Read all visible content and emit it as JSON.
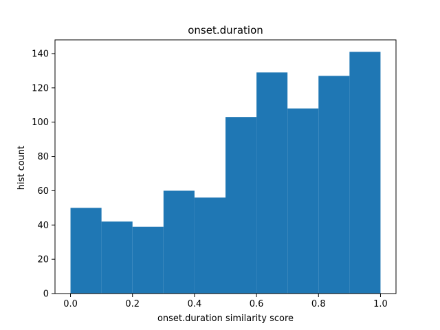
{
  "chart_data": {
    "type": "bar",
    "title": "onset.duration",
    "xlabel": "onset.duration similarity score",
    "ylabel": "hist count",
    "bin_edges": [
      0.0,
      0.1,
      0.2,
      0.3,
      0.4,
      0.5,
      0.6,
      0.7,
      0.8,
      0.9,
      1.0
    ],
    "values": [
      50,
      42,
      39,
      60,
      56,
      103,
      129,
      108,
      127,
      141
    ],
    "xlim": [
      -0.05,
      1.05
    ],
    "ylim": [
      0,
      148
    ],
    "xticks": [
      0.0,
      0.2,
      0.4,
      0.6,
      0.8,
      1.0
    ],
    "xtick_labels": [
      "0.0",
      "0.2",
      "0.4",
      "0.6",
      "0.8",
      "1.0"
    ],
    "yticks": [
      0,
      20,
      40,
      60,
      80,
      100,
      120,
      140
    ],
    "ytick_labels": [
      "0",
      "20",
      "40",
      "60",
      "80",
      "100",
      "120",
      "140"
    ],
    "grid": false,
    "bar_color": "#1f77b4"
  }
}
